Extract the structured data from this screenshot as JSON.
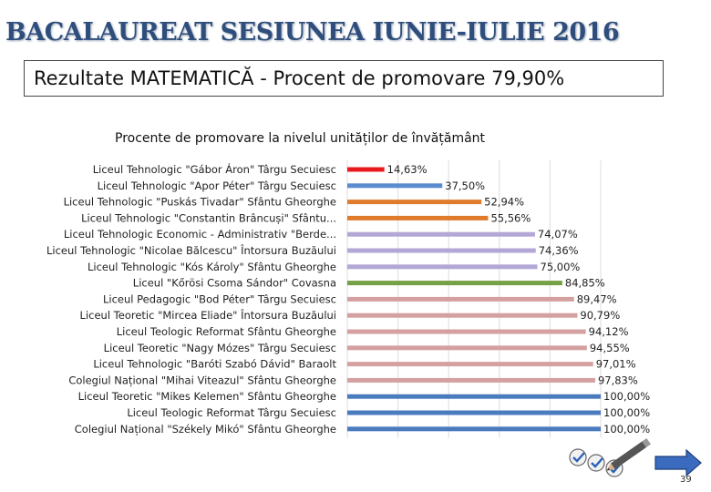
{
  "header": {
    "title": "BACALAUREAT SESIUNEA IUNIE-IULIE 2016",
    "subtitle": "Rezultate MATEMATICĂ - Procent de promovare 79,90%"
  },
  "footer": {
    "page_number": "39"
  },
  "icons": {
    "decoration": "checklist-pencil-icon",
    "navigation": "next-arrow-icon"
  },
  "chart_data": {
    "type": "bar",
    "orientation": "horizontal",
    "title": "Procente de promovare la nivelul unităților de învățământ",
    "xlim": [
      0,
      100
    ],
    "grid": true,
    "categories": [
      "Liceul Tehnologic \"Gábor Áron\" Târgu Secuiesc",
      "Liceul Tehnologic \"Apor Péter\" Târgu Secuiesc",
      "Liceul Tehnologic \"Puskás Tivadar\" Sfântu Gheorghe",
      "Liceul Tehnologic \"Constantin Brâncuși\" Sfântu...",
      "Liceul Tehnologic Economic - Administrativ \"Berde...",
      "Liceul Tehnologic \"Nicolae Bălcescu\" Întorsura Buzăului",
      "Liceul Tehnologic \"Kós Károly\" Sfântu Gheorghe",
      "Liceul \"Kőrösi Csoma Sándor\" Covasna",
      "Liceul Pedagogic \"Bod Péter\" Târgu Secuiesc",
      "Liceul Teoretic \"Mircea Eliade\" Întorsura Buzăului",
      "Liceul Teologic Reformat Sfântu Gheorghe",
      "Liceul Teoretic \"Nagy Mózes\" Târgu Secuiesc",
      "Liceul Tehnologic \"Baróti Szabó Dávid\" Baraolt",
      "Colegiul Național \"Mihai Viteazul\" Sfântu Gheorghe",
      "Liceul Teoretic \"Mikes Kelemen\" Sfântu Gheorghe",
      "Liceul Teologic Reformat Târgu Secuiesc",
      "Colegiul Național \"Székely Mikó\" Sfântu Gheorghe"
    ],
    "values": [
      14.63,
      37.5,
      52.94,
      55.56,
      74.07,
      74.36,
      75.0,
      84.85,
      89.47,
      90.79,
      94.12,
      94.55,
      97.01,
      97.83,
      100.0,
      100.0,
      100.0
    ],
    "value_labels": [
      "14,63%",
      "37,50%",
      "52,94%",
      "55,56%",
      "74,07%",
      "74,36%",
      "75,00%",
      "84,85%",
      "89,47%",
      "90,79%",
      "94,12%",
      "94,55%",
      "97,01%",
      "97,83%",
      "100,00%",
      "100,00%",
      "100,00%"
    ],
    "colors": [
      "#e8191c",
      "#5b8ccf",
      "#e07b2c",
      "#e07b2c",
      "#b3a7d6",
      "#b3a7d6",
      "#b3a7d6",
      "#76a045",
      "#d4a0a0",
      "#d4a0a0",
      "#d4a0a0",
      "#d4a0a0",
      "#d4a0a0",
      "#d4a0a0",
      "#4a7bbf",
      "#4a7bbf",
      "#4a7bbf"
    ]
  }
}
